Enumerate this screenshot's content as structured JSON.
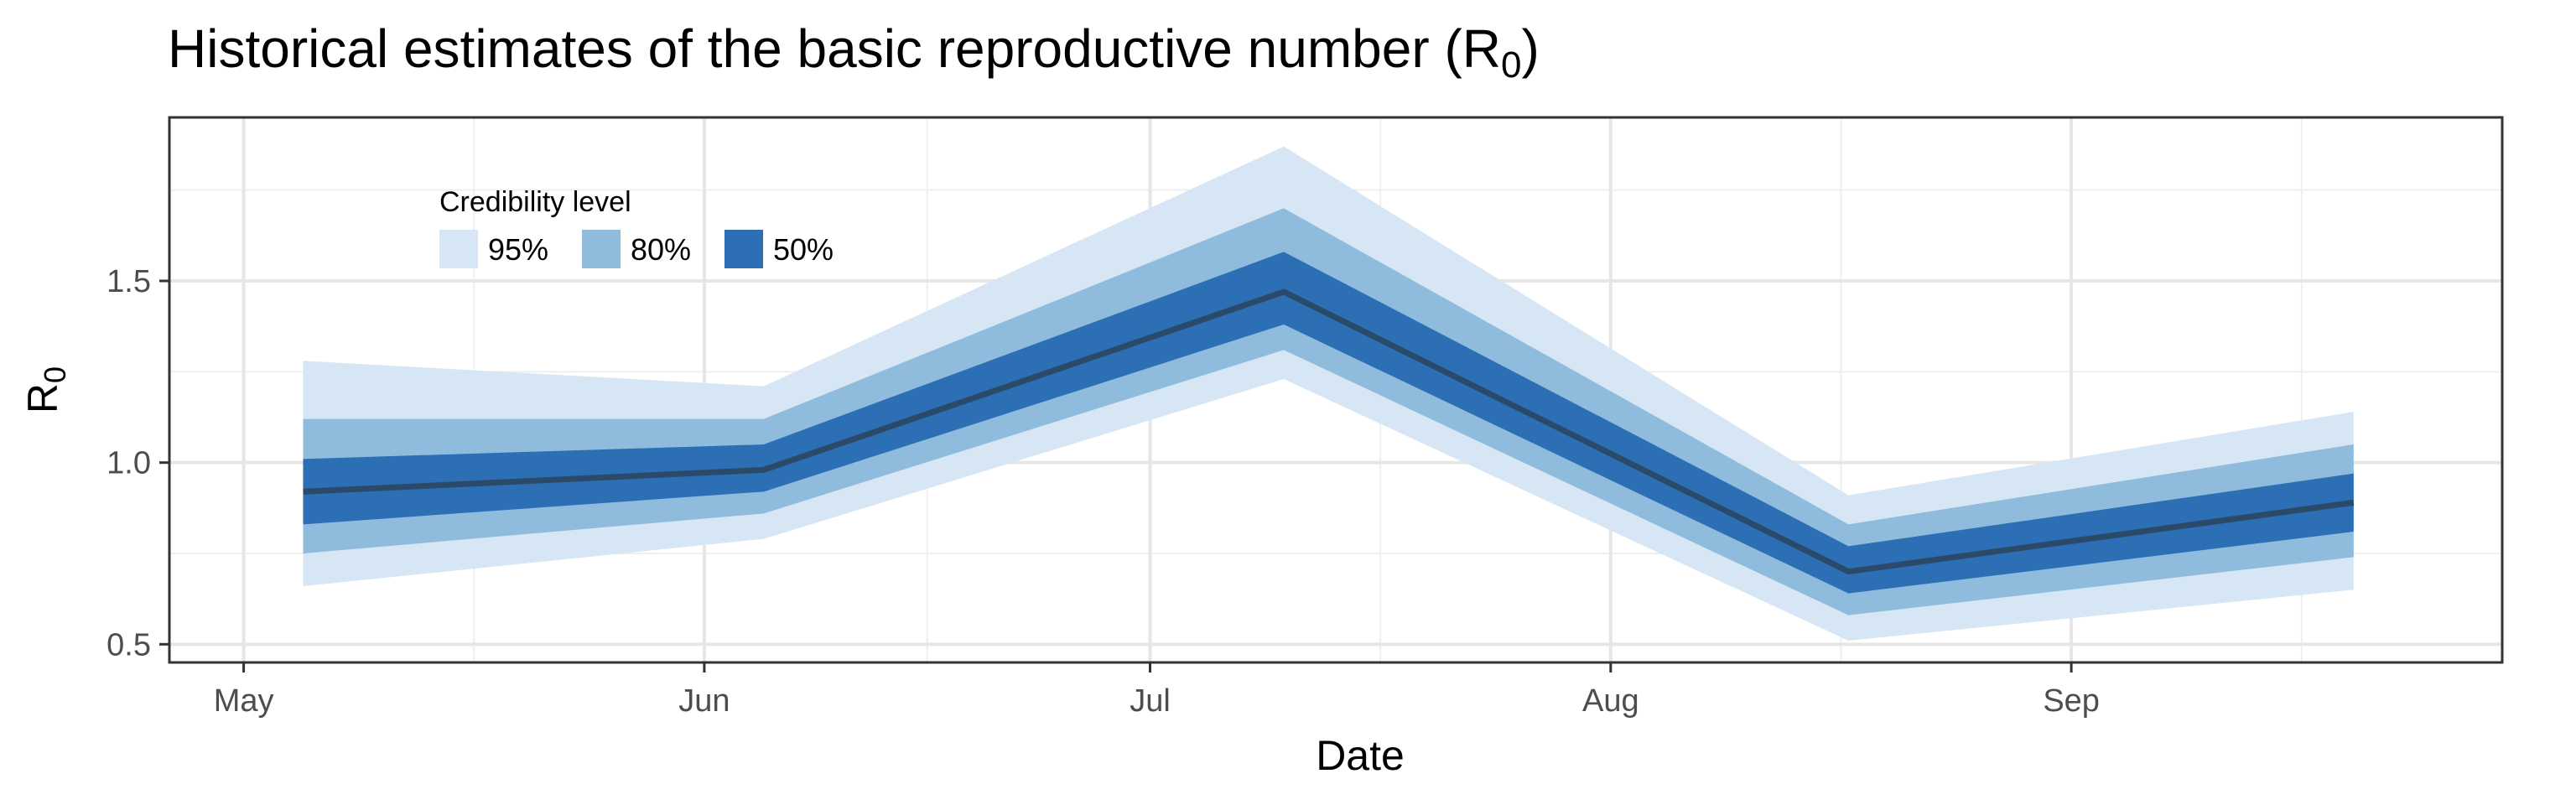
{
  "chart_data": {
    "type": "area",
    "title_main": "Historical estimates of the basic reproductive number (R",
    "title_sub": "0",
    "title_end": ")",
    "xlabel": "Date",
    "ylabel_main": "R",
    "ylabel_sub": "0",
    "x": [
      "2020-05-05",
      "2020-06-05",
      "2020-07-10",
      "2020-08-17",
      "2020-09-20"
    ],
    "median": [
      0.92,
      0.98,
      1.47,
      0.7,
      0.89
    ],
    "bands": [
      {
        "name": "95%",
        "lower": [
          0.66,
          0.79,
          1.23,
          0.51,
          0.65
        ],
        "upper": [
          1.28,
          1.21,
          1.87,
          0.91,
          1.14
        ],
        "color": "#d6e6f4"
      },
      {
        "name": "80%",
        "lower": [
          0.75,
          0.86,
          1.31,
          0.58,
          0.74
        ],
        "upper": [
          1.12,
          1.12,
          1.7,
          0.83,
          1.05
        ],
        "color": "#8fbcdc"
      },
      {
        "name": "50%",
        "lower": [
          0.83,
          0.92,
          1.38,
          0.64,
          0.81
        ],
        "upper": [
          1.01,
          1.05,
          1.58,
          0.77,
          0.97
        ],
        "color": "#2c6fb5"
      }
    ],
    "median_color": "#2b4a6a",
    "x_ticks": [
      {
        "date": "2020-05-01",
        "label": "May"
      },
      {
        "date": "2020-06-01",
        "label": "Jun"
      },
      {
        "date": "2020-07-01",
        "label": "Jul"
      },
      {
        "date": "2020-08-01",
        "label": "Aug"
      },
      {
        "date": "2020-09-01",
        "label": "Sep"
      }
    ],
    "y_ticks": [
      0.5,
      1.0,
      1.5
    ],
    "y_tick_labels": [
      "0.5",
      "1.0",
      "1.5"
    ],
    "ylim": [
      0.45,
      1.95
    ],
    "xlim": [
      "2020-04-26",
      "2020-09-30"
    ],
    "grid": true,
    "legend_title": "Credibility level",
    "legend_position": "top-left"
  }
}
